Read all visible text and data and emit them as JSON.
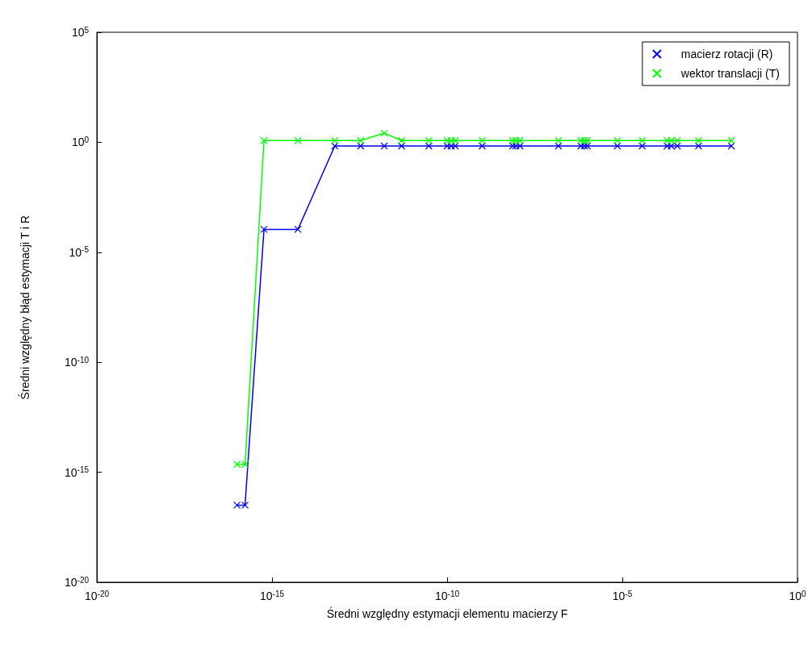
{
  "chart_data": {
    "type": "line",
    "xlabel": "Średni względny estymacji elementu macierzy F",
    "ylabel": "Średni względny błąd estymacji T i R",
    "log": "xy",
    "grid": false,
    "legend": "top right",
    "marker": "cross",
    "line_style": "solid",
    "xlim": [
      1e-20,
      1
    ],
    "ylim": [
      1e-20,
      100000
    ],
    "xticks": [
      {
        "value": 1e-20,
        "label": "10$^{-20}$"
      },
      {
        "value": 1e-15,
        "label": "10$^{-15}$"
      },
      {
        "value": 1e-10,
        "label": "10$^{-10}$"
      },
      {
        "value": 1e-05,
        "label": "10$^{-5}$"
      },
      {
        "value": 1,
        "label": "10$^{0}$"
      }
    ],
    "yticks": [
      {
        "value": 1e-20,
        "label": "10$^{-20}$"
      },
      {
        "value": 1e-15,
        "label": "10$^{-15}$"
      },
      {
        "value": 1e-10,
        "label": "10$^{-10}$"
      },
      {
        "value": 1e-05,
        "label": "10$^{-5}$"
      },
      {
        "value": 1,
        "label": "10$^{0}$"
      },
      {
        "value": 100000,
        "label": "10$^{5}$"
      }
    ],
    "x": [
      1e-16,
      1.7e-16,
      5.9e-16,
      5.5e-15,
      6.2e-14,
      3.4e-13,
      1.6e-12,
      5e-12,
      3e-11,
      1e-10,
      1.3e-10,
      1.7e-10,
      1e-09,
      7.4e-09,
      9.1e-09,
      1.2e-08,
      1.5e-07,
      6.6e-07,
      8.3e-07,
      1e-06,
      7.2e-06,
      3.7e-05,
      0.00019,
      0.00025,
      0.00037,
      0.0015,
      0.013
    ],
    "series": [
      {
        "name": "macierz rotacji (R)",
        "color": "#0000ff",
        "values": [
          3.2e-17,
          3.2e-17,
          0.00011,
          0.00011,
          0.68,
          0.68,
          0.68,
          0.68,
          0.68,
          0.68,
          0.68,
          0.68,
          0.68,
          0.68,
          0.68,
          0.68,
          0.68,
          0.68,
          0.68,
          0.68,
          0.68,
          0.68,
          0.68,
          0.68,
          0.68,
          0.68,
          0.68
        ]
      },
      {
        "name": "wektor translacji (T)",
        "color": "#00ff00",
        "values": [
          2.3e-15,
          2.3e-15,
          1.2,
          1.2,
          1.2,
          1.2,
          2.6,
          1.2,
          1.2,
          1.2,
          1.2,
          1.2,
          1.2,
          1.2,
          1.2,
          1.2,
          1.2,
          1.2,
          1.2,
          1.2,
          1.2,
          1.2,
          1.2,
          1.2,
          1.2,
          1.2,
          1.2
        ]
      }
    ]
  }
}
